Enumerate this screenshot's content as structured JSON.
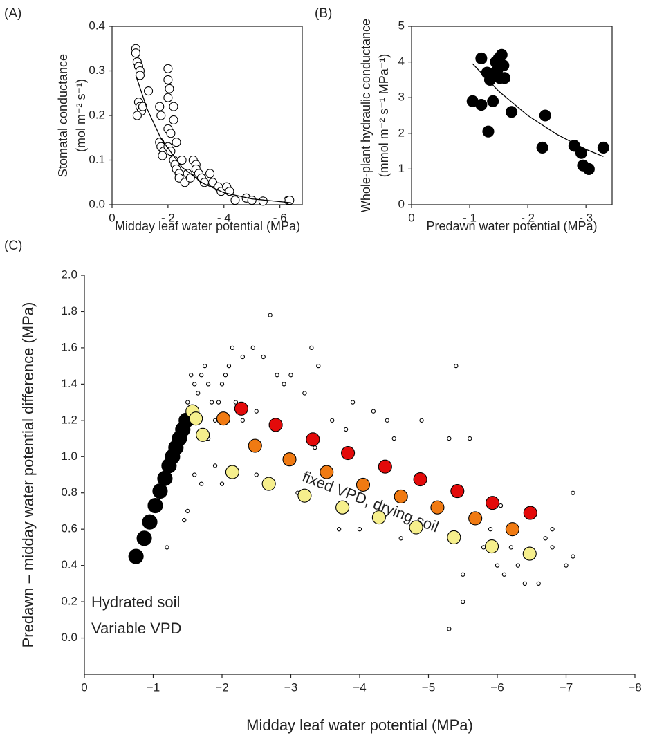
{
  "chart_data": [
    {
      "type": "scatter",
      "panel_label": "(A)",
      "xlabel": "Midday leaf water potential (MPa)",
      "ylabel": [
        "Stomatal conductance",
        "(mol m⁻² s⁻¹)"
      ],
      "xlim": [
        0,
        -6.8
      ],
      "ylim": [
        0,
        0.4
      ],
      "xticks": [
        0,
        {
          "value": -2,
          "label": "- 2"
        },
        {
          "value": -4,
          "label": "- 4"
        },
        {
          "value": -6,
          "label": "- 6"
        }
      ],
      "yticks": [
        {
          "value": 0,
          "label": "0.0"
        },
        0.1,
        0.2,
        0.3,
        0.4
      ],
      "frame": true,
      "series": [
        {
          "type": "scatter",
          "color": "#ffffff",
          "x": [
            -0.85,
            -0.85,
            -0.9,
            -0.95,
            -1,
            -1,
            -0.95,
            -1.0,
            -1.05,
            -0.9,
            -1.1,
            -1.3,
            -2.0,
            -2.0,
            -2.05,
            -2.0,
            -2.2,
            -1.7,
            -1.75,
            -1.7,
            -1.75,
            -1.85,
            -1.8,
            -2.0,
            -2.1,
            -2.0,
            -2.1,
            -2.2,
            -2.25,
            -2.3,
            -2.4,
            -2.4,
            -2.5,
            -2.6,
            -2.7,
            -2.8,
            -2.9,
            -3.0,
            -3.0,
            -3.1,
            -3.2,
            -3.3,
            -3.6,
            -3.8,
            -3.9,
            -4.1,
            -4.2,
            -4.4,
            -4.8,
            -5.0,
            -5.4,
            -6.3,
            -6.35,
            -2.2,
            -2.3,
            -3.5
          ],
          "values": [
            0.35,
            0.34,
            0.32,
            0.31,
            0.3,
            0.29,
            0.23,
            0.22,
            0.21,
            0.2,
            0.22,
            0.255,
            0.305,
            0.28,
            0.26,
            0.24,
            0.22,
            0.22,
            0.2,
            0.14,
            0.13,
            0.12,
            0.11,
            0.17,
            0.16,
            0.13,
            0.12,
            0.1,
            0.09,
            0.08,
            0.07,
            0.06,
            0.1,
            0.05,
            0.07,
            0.06,
            0.1,
            0.09,
            0.08,
            0.07,
            0.06,
            0.05,
            0.05,
            0.04,
            0.03,
            0.04,
            0.03,
            0.01,
            0.015,
            0.01,
            0.008,
            0.01,
            0.01,
            0.19,
            0.14,
            0.07
          ]
        },
        {
          "type": "line",
          "color": "#000000",
          "x": [
            -0.85,
            -1.25,
            -1.75,
            -2.5,
            -3.25,
            -4,
            -5,
            -6.4
          ],
          "values": [
            0.29,
            0.215,
            0.148,
            0.084,
            0.048,
            0.027,
            0.013,
            0.0045
          ]
        }
      ]
    },
    {
      "type": "scatter",
      "panel_label": "(B)",
      "xlabel": "Predawn water potential (MPa)",
      "ylabel": [
        "Whole-plant hydraulic conductance",
        "(mmol m⁻² s⁻¹ MPa⁻¹)"
      ],
      "xlim": [
        0,
        -3.45
      ],
      "ylim": [
        0,
        5
      ],
      "xticks": [
        0,
        {
          "value": -1,
          "label": "- 1"
        },
        {
          "value": -2,
          "label": "- 2"
        },
        {
          "value": -3,
          "label": "- 3"
        }
      ],
      "yticks": [
        0,
        1,
        2,
        3,
        4,
        5
      ],
      "frame": true,
      "series": [
        {
          "type": "scatter",
          "color": "#000000",
          "x": [
            -1.05,
            -1.2,
            -1.2,
            -1.3,
            -1.32,
            -1.35,
            -1.38,
            -1.4,
            -1.45,
            -1.47,
            -1.5,
            -1.52,
            -1.55,
            -1.58,
            -1.6,
            -1.72,
            -2.25,
            -2.3,
            -2.8,
            -2.92,
            -2.95,
            -3.05,
            -3.3
          ],
          "values": [
            2.9,
            2.8,
            4.1,
            3.7,
            2.05,
            3.5,
            3.65,
            2.9,
            4.0,
            3.75,
            4.1,
            3.55,
            4.2,
            3.9,
            3.55,
            2.6,
            1.6,
            2.5,
            1.65,
            1.45,
            1.1,
            1.0,
            1.6
          ]
        },
        {
          "type": "line",
          "color": "#000000",
          "x": [
            -1.05,
            -1.5,
            -2,
            -2.5,
            -3,
            -3.3
          ],
          "values": [
            3.95,
            3.18,
            2.5,
            1.97,
            1.55,
            1.35
          ]
        }
      ]
    },
    {
      "type": "scatter",
      "panel_label": "(C)",
      "xlabel": "Midday leaf water potential (MPa)",
      "ylabel": [
        "Predawn – midday water potential difference (MPa)"
      ],
      "xlim": [
        0,
        -8
      ],
      "ylim": [
        -0.2,
        2.0
      ],
      "frame": false,
      "xticks": [
        0,
        {
          "value": -1,
          "label": "−1"
        },
        {
          "value": -2,
          "label": "−2"
        },
        {
          "value": -3,
          "label": "−3"
        },
        {
          "value": -4,
          "label": "−4"
        },
        {
          "value": -5,
          "label": "−5"
        },
        {
          "value": -6,
          "label": "−6"
        },
        {
          "value": -7,
          "label": "−7"
        },
        {
          "value": -8,
          "label": "−8"
        }
      ],
      "yticks": [
        {
          "value": 0,
          "label": "0.0"
        },
        0.2,
        0.4,
        0.6,
        0.8,
        {
          "value": 1,
          "label": "1.0"
        },
        1.2,
        1.4,
        1.6,
        1.8,
        {
          "value": 2,
          "label": "2.0"
        }
      ],
      "annotations": [
        "Hydrated soil",
        "Variable VPD",
        "fixed VPD, drying soil"
      ],
      "series": [
        {
          "type": "scatter",
          "color": "#ffffff",
          "x": [
            -1.5,
            -1.55,
            -1.6,
            -1.65,
            -1.7,
            -1.75,
            -1.8,
            -1.85,
            -1.9,
            -1.95,
            -2.0,
            -2.05,
            -2.1,
            -2.15,
            -2.2,
            -2.3,
            -2.45,
            -2.6,
            -2.7,
            -2.8,
            -2.9,
            -3.0,
            -3.2,
            -3.3,
            -3.4,
            -3.6,
            -3.8,
            -3.9,
            -4.2,
            -4.4,
            -4.5,
            -4.9,
            -5.3,
            -5.4,
            -5.6,
            -1.6,
            -1.5,
            -1.45,
            -1.2,
            -1.7,
            -1.9,
            -2.0,
            -2.5,
            -3.1,
            -3.7,
            -4.0,
            -4.6,
            -5.3,
            -5.5,
            -5.5,
            -5.8,
            -6.0,
            -6.1,
            -6.3,
            -6.4,
            -6.6,
            -6.7,
            -6.8,
            -7.0,
            -7.1,
            -7.1,
            -6.8,
            -6.2,
            -6.05,
            -5.9,
            -4.35,
            -2.3,
            -2.5,
            -3.35,
            -1.8
          ],
          "values": [
            1.3,
            1.45,
            1.4,
            1.35,
            1.45,
            1.5,
            1.4,
            1.3,
            1.2,
            1.3,
            1.4,
            1.45,
            1.5,
            1.6,
            1.3,
            1.55,
            1.6,
            1.55,
            1.78,
            1.45,
            1.4,
            1.45,
            1.35,
            1.6,
            1.5,
            1.2,
            1.15,
            1.3,
            1.25,
            1.2,
            1.1,
            1.2,
            1.1,
            1.5,
            1.1,
            0.9,
            0.7,
            0.65,
            0.5,
            0.85,
            0.95,
            0.85,
            0.9,
            0.8,
            0.6,
            0.6,
            0.55,
            0.05,
            0.2,
            0.35,
            0.5,
            0.4,
            0.35,
            0.4,
            0.3,
            0.3,
            0.55,
            0.5,
            0.4,
            0.45,
            0.8,
            0.6,
            0.5,
            0.73,
            0.6,
            0.95,
            1.2,
            1.25,
            1.05,
            1.1
          ]
        },
        {
          "type": "scatter",
          "color": "#000000",
          "x": [
            -0.75,
            -0.87,
            -0.95,
            -1.03,
            -1.1,
            -1.17,
            -1.23,
            -1.28,
            -1.33,
            -1.38,
            -1.43,
            -1.48
          ],
          "values": [
            0.45,
            0.55,
            0.64,
            0.73,
            0.81,
            0.88,
            0.95,
            1.0,
            1.05,
            1.1,
            1.15,
            1.2
          ]
        },
        {
          "type": "scatter",
          "color": "#f6ef8c",
          "x": [
            -1.57,
            -1.62,
            -1.72,
            -2.15,
            -2.68,
            -3.2,
            -3.75,
            -4.28,
            -4.82,
            -5.37,
            -5.92,
            -6.47
          ],
          "values": [
            1.25,
            1.21,
            1.12,
            0.915,
            0.85,
            0.785,
            0.72,
            0.665,
            0.61,
            0.555,
            0.505,
            0.465
          ]
        },
        {
          "type": "scatter",
          "color": "#f07a12",
          "x": [
            -2.02,
            -2.48,
            -2.98,
            -3.52,
            -4.05,
            -4.6,
            -5.13,
            -5.68,
            -6.22
          ],
          "values": [
            1.21,
            1.06,
            0.985,
            0.915,
            0.845,
            0.78,
            0.72,
            0.66,
            0.6
          ]
        },
        {
          "type": "scatter",
          "color": "#e30a0a",
          "x": [
            -2.28,
            -2.78,
            -3.32,
            -3.83,
            -4.37,
            -4.88,
            -5.42,
            -5.93,
            -6.48
          ],
          "values": [
            1.265,
            1.175,
            1.095,
            1.02,
            0.945,
            0.875,
            0.81,
            0.745,
            0.69
          ]
        }
      ]
    }
  ]
}
